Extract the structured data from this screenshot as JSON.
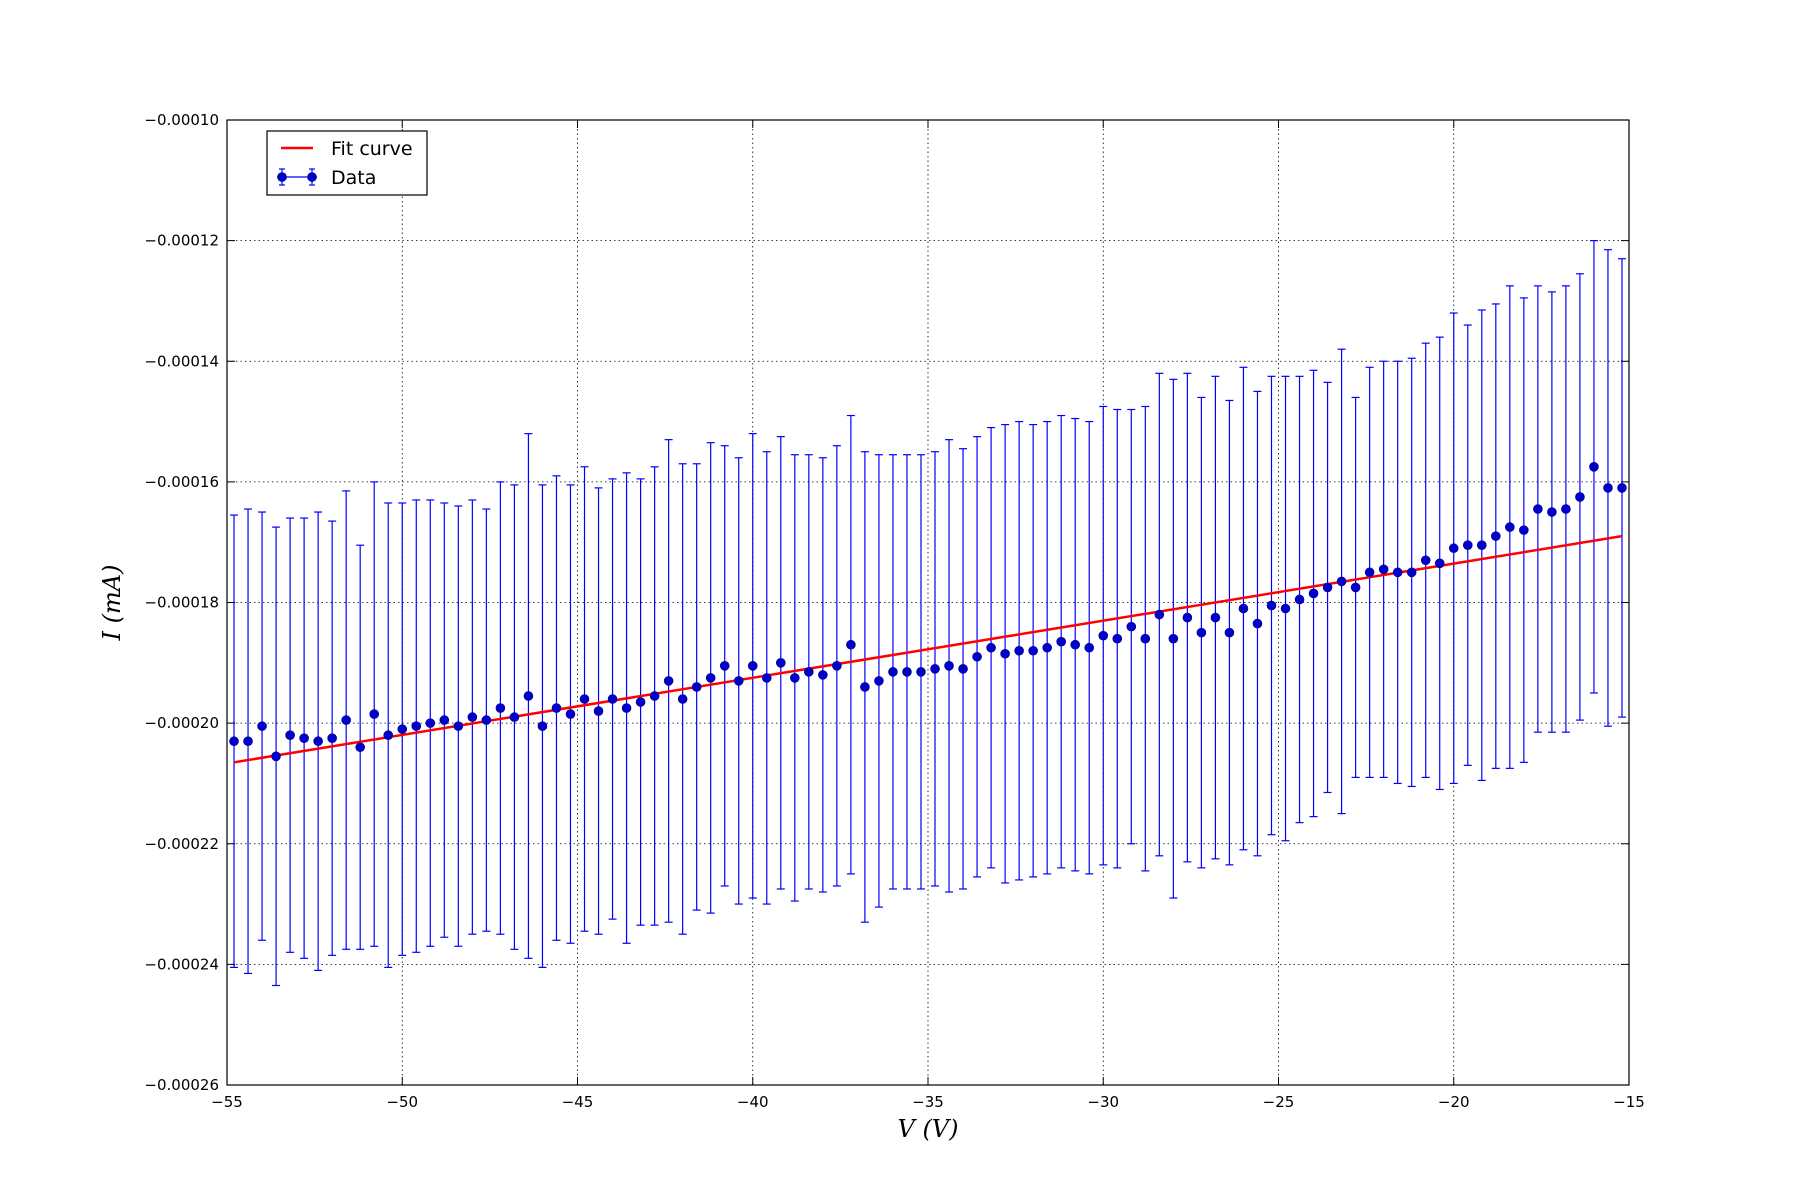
{
  "chart_data": {
    "type": "scatter",
    "xlabel": "V (V)",
    "ylabel": "I (mA)",
    "xlim": [
      -55,
      -15
    ],
    "ylim": [
      -0.00026,
      -0.0001
    ],
    "grid": true,
    "legend_placement": "top-left",
    "x_ticks": [
      -55,
      -50,
      -45,
      -40,
      -35,
      -30,
      -25,
      -20,
      -15
    ],
    "x_tick_labels": [
      "−55",
      "−50",
      "−45",
      "−40",
      "−35",
      "−30",
      "−25",
      "−20",
      "−15"
    ],
    "y_ticks": [
      -0.0001,
      -0.00012,
      -0.00014,
      -0.00016,
      -0.00018,
      -0.0002,
      -0.00022,
      -0.00024,
      -0.00026
    ],
    "y_tick_labels": [
      "−0.00010",
      "−0.00012",
      "−0.00014",
      "−0.00016",
      "−0.00018",
      "−0.00020",
      "−0.00022",
      "−0.00024",
      "−0.00026"
    ],
    "colors": {
      "data": "#0000cc",
      "errorbar": "#0000ff",
      "fit": "#ff0000"
    },
    "series": [
      {
        "name": "Data",
        "kind": "errorbar",
        "x": [
          -54.8,
          -54.4,
          -54.0,
          -53.6,
          -53.2,
          -52.8,
          -52.4,
          -52.0,
          -51.6,
          -51.2,
          -50.8,
          -50.4,
          -50.0,
          -49.6,
          -49.2,
          -48.8,
          -48.4,
          -48.0,
          -47.6,
          -47.2,
          -46.8,
          -46.4,
          -46.0,
          -45.6,
          -45.2,
          -44.8,
          -44.4,
          -44.0,
          -43.6,
          -43.2,
          -42.8,
          -42.4,
          -42.0,
          -41.6,
          -41.2,
          -40.8,
          -40.4,
          -40.0,
          -39.6,
          -39.2,
          -38.8,
          -38.4,
          -38.0,
          -37.6,
          -37.2,
          -36.8,
          -36.4,
          -36.0,
          -35.6,
          -35.2,
          -34.8,
          -34.4,
          -34.0,
          -33.6,
          -33.2,
          -32.8,
          -32.4,
          -32.0,
          -31.6,
          -31.2,
          -30.8,
          -30.4,
          -30.0,
          -29.6,
          -29.2,
          -28.8,
          -28.4,
          -28.0,
          -27.6,
          -27.2,
          -26.8,
          -26.4,
          -26.0,
          -25.6,
          -25.2,
          -24.8,
          -24.4,
          -24.0,
          -23.6,
          -23.2,
          -22.8,
          -22.4,
          -22.0,
          -21.6,
          -21.2,
          -20.8,
          -20.4,
          -20.0,
          -19.6,
          -19.2,
          -18.8,
          -18.4,
          -18.0,
          -17.6,
          -17.2,
          -16.8,
          -16.4,
          -16.0,
          -15.6,
          -15.2
        ],
        "y": [
          -0.000203,
          -0.000203,
          -0.0002005,
          -0.0002055,
          -0.000202,
          -0.0002025,
          -0.000203,
          -0.0002025,
          -0.0001995,
          -0.000204,
          -0.0001985,
          -0.000202,
          -0.000201,
          -0.0002005,
          -0.0002,
          -0.0001995,
          -0.0002005,
          -0.000199,
          -0.0001995,
          -0.0001975,
          -0.000199,
          -0.0001955,
          -0.0002005,
          -0.0001975,
          -0.0001985,
          -0.000196,
          -0.000198,
          -0.000196,
          -0.0001975,
          -0.0001965,
          -0.0001955,
          -0.000193,
          -0.000196,
          -0.000194,
          -0.0001925,
          -0.0001905,
          -0.000193,
          -0.0001905,
          -0.0001925,
          -0.00019,
          -0.0001925,
          -0.0001915,
          -0.000192,
          -0.0001905,
          -0.000187,
          -0.000194,
          -0.000193,
          -0.0001915,
          -0.0001915,
          -0.0001915,
          -0.000191,
          -0.0001905,
          -0.000191,
          -0.000189,
          -0.0001875,
          -0.0001885,
          -0.000188,
          -0.000188,
          -0.0001875,
          -0.0001865,
          -0.000187,
          -0.0001875,
          -0.0001855,
          -0.000186,
          -0.000184,
          -0.000186,
          -0.000182,
          -0.000186,
          -0.0001825,
          -0.000185,
          -0.0001825,
          -0.000185,
          -0.000181,
          -0.0001835,
          -0.0001805,
          -0.000181,
          -0.0001795,
          -0.0001785,
          -0.0001775,
          -0.0001765,
          -0.0001775,
          -0.000175,
          -0.0001745,
          -0.000175,
          -0.000175,
          -0.000173,
          -0.0001735,
          -0.000171,
          -0.0001705,
          -0.0001705,
          -0.000169,
          -0.0001675,
          -0.000168,
          -0.0001645,
          -0.000165,
          -0.0001645,
          -0.0001625,
          -0.0001575,
          -0.000161,
          -0.000161
        ],
        "yerr": [
          3.75e-05,
          3.85e-05,
          3.55e-05,
          3.8e-05,
          3.6e-05,
          3.65e-05,
          3.8e-05,
          3.6e-05,
          3.8e-05,
          3.35e-05,
          3.85e-05,
          3.85e-05,
          3.75e-05,
          3.75e-05,
          3.7e-05,
          3.6e-05,
          3.65e-05,
          3.6e-05,
          3.5e-05,
          3.75e-05,
          3.85e-05,
          4.35e-05,
          4e-05,
          3.85e-05,
          3.8e-05,
          3.85e-05,
          3.7e-05,
          3.65e-05,
          3.9e-05,
          3.7e-05,
          3.8e-05,
          4e-05,
          3.9e-05,
          3.7e-05,
          3.9e-05,
          3.65e-05,
          3.7e-05,
          3.85e-05,
          3.75e-05,
          3.75e-05,
          3.7e-05,
          3.6e-05,
          3.6e-05,
          3.65e-05,
          3.8e-05,
          3.9e-05,
          3.75e-05,
          3.6e-05,
          3.6e-05,
          3.6e-05,
          3.6e-05,
          3.75e-05,
          3.65e-05,
          3.65e-05,
          3.65e-05,
          3.8e-05,
          3.8e-05,
          3.75e-05,
          3.75e-05,
          3.75e-05,
          3.75e-05,
          3.75e-05,
          3.8e-05,
          3.8e-05,
          3.6e-05,
          3.85e-05,
          4e-05,
          4.3e-05,
          4.05e-05,
          3.9e-05,
          4e-05,
          3.85e-05,
          4e-05,
          3.85e-05,
          3.8e-05,
          3.85e-05,
          3.7e-05,
          3.7e-05,
          3.4e-05,
          3.85e-05,
          3.15e-05,
          3.4e-05,
          3.45e-05,
          3.5e-05,
          3.55e-05,
          3.6e-05,
          3.75e-05,
          3.9e-05,
          3.65e-05,
          3.9e-05,
          3.85e-05,
          4e-05,
          3.85e-05,
          3.7e-05,
          3.65e-05,
          3.7e-05,
          3.7e-05,
          3.75e-05,
          3.95e-05,
          3.8e-05
        ]
      },
      {
        "name": "Fit curve",
        "kind": "line",
        "x": [
          -54.8,
          -15.2
        ],
        "y": [
          -0.0002065,
          -0.000169
        ]
      }
    ]
  }
}
